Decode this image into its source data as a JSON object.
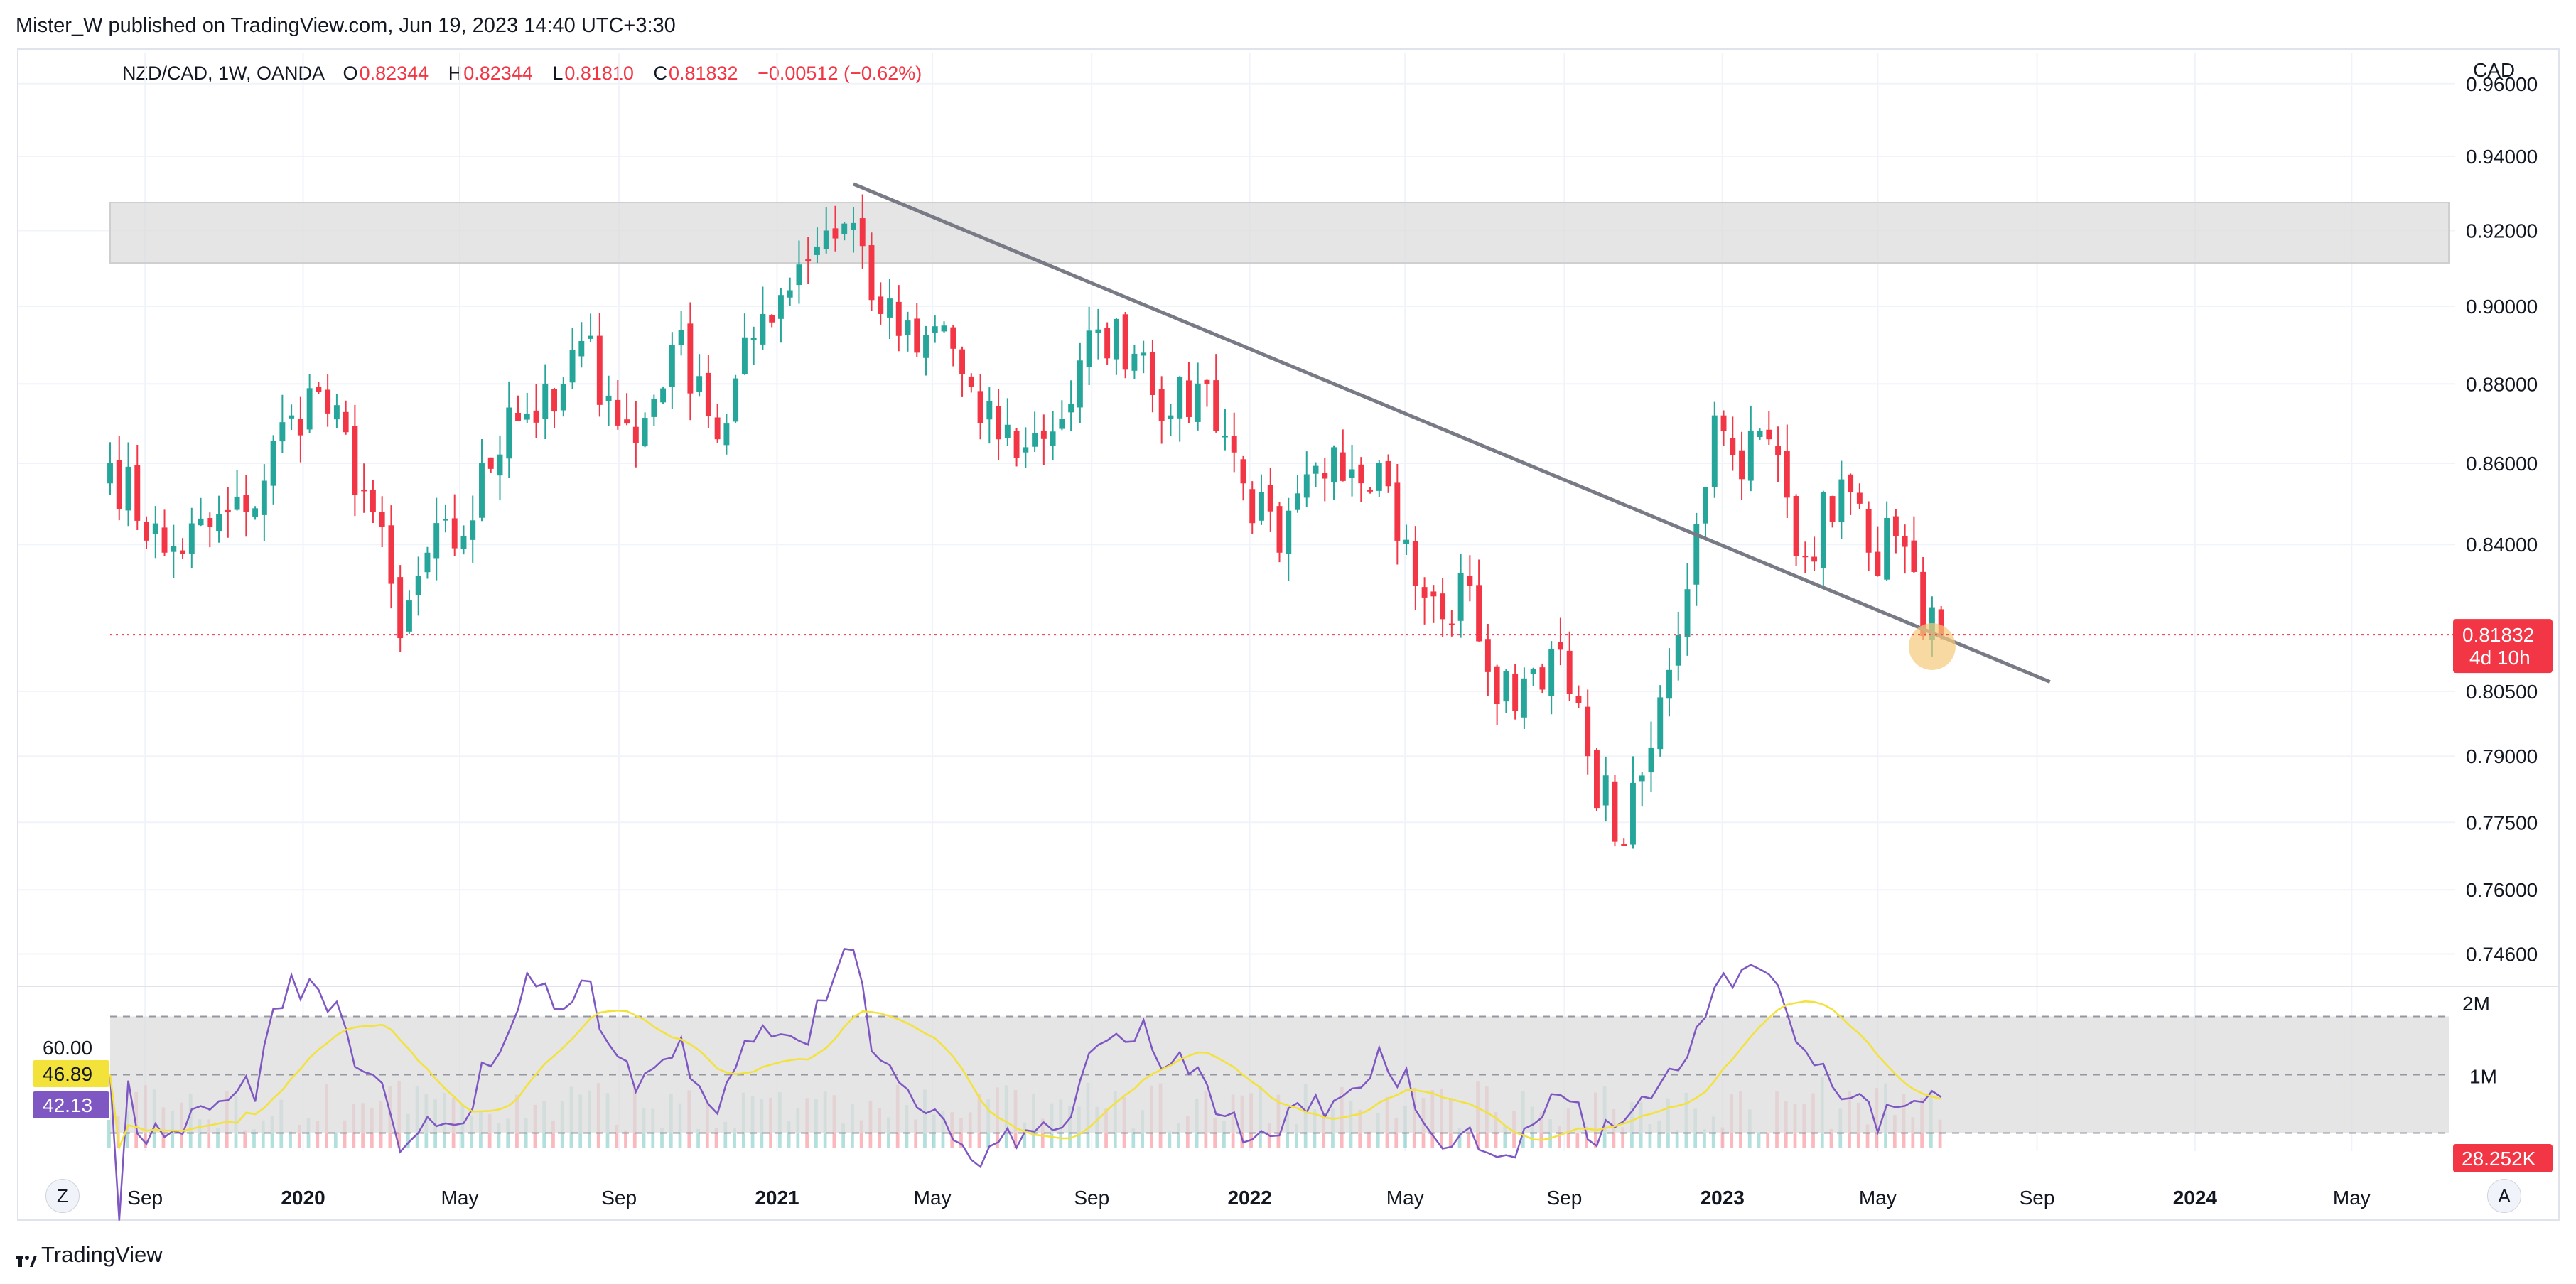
{
  "header": {
    "published_by": "Mister_W published on TradingView.com, Jun 19, 2023 14:40 UTC+3:30"
  },
  "symbol": {
    "title": "NZD/CAD, 1W, OANDA",
    "open_key": "O",
    "open": "0.82344",
    "high_key": "H",
    "high": "0.82344",
    "low_key": "L",
    "low": "0.81810",
    "close_key": "C",
    "close": "0.81832",
    "change": "−0.00512 (−0.62%)"
  },
  "price_axis": {
    "currency": "CAD",
    "ticks": [
      "0.96000",
      "0.94000",
      "0.92000",
      "0.90000",
      "0.88000",
      "0.86000",
      "0.84000",
      "0.80500",
      "0.79000",
      "0.77500",
      "0.76000",
      "0.74600"
    ],
    "last_price_label": "0.81832",
    "countdown_label": "4d 10h"
  },
  "volume_axis": {
    "ticks": [
      "2M",
      "1M"
    ],
    "last_volume_label": "28.252K"
  },
  "rsi": {
    "upper_level_label": "60.00",
    "ma_value_label": "46.89",
    "rsi_value_label": "42.13"
  },
  "time_axis": {
    "labels": [
      "Sep",
      "2020",
      "May",
      "Sep",
      "2021",
      "May",
      "Sep",
      "2022",
      "May",
      "Sep",
      "2023",
      "May",
      "Sep",
      "2024",
      "May"
    ]
  },
  "buttons": {
    "zoom_label": "Z",
    "auto_label": "A"
  },
  "footer": {
    "brand": "TradingView"
  },
  "colors": {
    "up": "#26a69a",
    "down": "#f23645",
    "rsi_line": "#7e57c2",
    "rsi_ma": "#f3e23a",
    "trendline": "#787b86",
    "zone": "#dcdcdc",
    "grid": "#f0f3fa",
    "highlight": "#f6c97a"
  },
  "chart_data": {
    "type": "candlestick",
    "symbol": "NZD/CAD",
    "interval": "1W",
    "y_scale": "log",
    "ylim": [
      0.7395,
      0.9665
    ],
    "x_range": [
      "2019-08-05",
      "2024-07-15"
    ],
    "horizontal_zone": [
      0.9114,
      0.9275
    ],
    "trendline": {
      "start": [
        "2021-03-01",
        0.9325
      ],
      "end": [
        "2023-09-11",
        0.8072
      ]
    },
    "last_price": 0.81832,
    "highlight_point": [
      "2023-06-12",
      0.8155
    ],
    "anchors": [
      [
        "2019-08-05",
        0.86,
        0.855
      ],
      [
        "2019-09-16",
        0.838,
        0.835
      ],
      [
        "2019-11-18",
        0.848
      ],
      [
        "2019-12-23",
        0.872
      ],
      [
        "2020-01-13",
        0.878
      ],
      [
        "2020-02-24",
        0.848
      ],
      [
        "2020-03-16",
        0.8175
      ],
      [
        "2020-04-06",
        0.838
      ],
      [
        "2020-05-04",
        0.842
      ],
      [
        "2020-06-08",
        0.874
      ],
      [
        "2020-07-13",
        0.873
      ],
      [
        "2020-08-03",
        0.891
      ],
      [
        "2020-08-24",
        0.877
      ],
      [
        "2020-09-14",
        0.865
      ],
      [
        "2020-10-12",
        0.89
      ],
      [
        "2020-11-02",
        0.882
      ],
      [
        "2020-11-16",
        0.866
      ],
      [
        "2020-12-21",
        0.898
      ],
      [
        "2021-01-18",
        0.911
      ],
      [
        "2021-02-08",
        0.92
      ],
      [
        "2021-03-01",
        0.922
      ],
      [
        "2021-03-22",
        0.898
      ],
      [
        "2021-04-19",
        0.888
      ],
      [
        "2021-05-10",
        0.895
      ],
      [
        "2021-06-07",
        0.87
      ],
      [
        "2021-07-12",
        0.864
      ],
      [
        "2021-08-16",
        0.875
      ],
      [
        "2021-09-06",
        0.894
      ],
      [
        "2021-10-11",
        0.888
      ],
      [
        "2021-11-01",
        0.872
      ],
      [
        "2021-11-29",
        0.88
      ],
      [
        "2021-12-27",
        0.855
      ],
      [
        "2022-01-24",
        0.838
      ],
      [
        "2022-03-07",
        0.864
      ],
      [
        "2022-04-11",
        0.86
      ],
      [
        "2022-05-09",
        0.83
      ],
      [
        "2022-05-30",
        0.822
      ],
      [
        "2022-06-20",
        0.83
      ],
      [
        "2022-07-11",
        0.802
      ],
      [
        "2022-08-01",
        0.808
      ],
      [
        "2022-08-22",
        0.815
      ],
      [
        "2022-09-19",
        0.79
      ],
      [
        "2022-10-17",
        0.77
      ],
      [
        "2022-11-07",
        0.792
      ],
      [
        "2022-11-21",
        0.81
      ],
      [
        "2022-12-12",
        0.845
      ],
      [
        "2022-12-26",
        0.872
      ],
      [
        "2023-01-09",
        0.862
      ],
      [
        "2023-02-06",
        0.866
      ],
      [
        "2023-03-06",
        0.837
      ],
      [
        "2023-04-03",
        0.856
      ],
      [
        "2023-04-24",
        0.838
      ],
      [
        "2023-05-15",
        0.842
      ],
      [
        "2023-06-05",
        0.818
      ],
      [
        "2023-06-19",
        0.81832
      ]
    ],
    "volume_scale": {
      "ticks": [
        1000000,
        2000000
      ],
      "last": 28252
    },
    "rsi_levels": {
      "upper": 60,
      "middle": 50,
      "lower": 40,
      "last_rsi": 42.13,
      "last_ma": 46.89
    }
  }
}
